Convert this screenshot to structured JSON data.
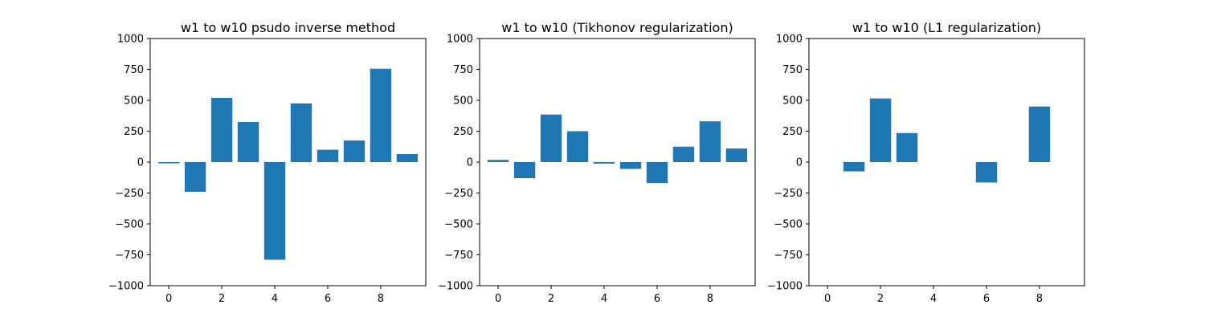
{
  "chart_data": [
    {
      "type": "bar",
      "title": "w1 to w10 psudo inverse method",
      "x": [
        0,
        1,
        2,
        3,
        4,
        5,
        6,
        7,
        8,
        9
      ],
      "values": [
        -10,
        -240,
        520,
        325,
        -790,
        475,
        100,
        175,
        755,
        65
      ],
      "xlim": [
        -0.7,
        9.7
      ],
      "ylim": [
        -1000,
        1000
      ],
      "xticks": [
        0,
        2,
        4,
        6,
        8
      ],
      "yticks": [
        -1000,
        -750,
        -500,
        -250,
        0,
        250,
        500,
        750,
        1000
      ],
      "bar_color": "#1f77b4",
      "grid": false
    },
    {
      "type": "bar",
      "title": "w1 to w10 (Tikhonov regularization)",
      "x": [
        0,
        1,
        2,
        3,
        4,
        5,
        6,
        7,
        8,
        9
      ],
      "values": [
        18,
        -130,
        385,
        250,
        -12,
        -55,
        -170,
        125,
        330,
        110
      ],
      "xlim": [
        -0.7,
        9.7
      ],
      "ylim": [
        -1000,
        1000
      ],
      "xticks": [
        0,
        2,
        4,
        6,
        8
      ],
      "yticks": [
        -1000,
        -750,
        -500,
        -250,
        0,
        250,
        500,
        750,
        1000
      ],
      "bar_color": "#1f77b4",
      "grid": false
    },
    {
      "type": "bar",
      "title": "w1 to w10 (L1 regularization)",
      "x": [
        0,
        1,
        2,
        3,
        4,
        5,
        6,
        7,
        8,
        9
      ],
      "values": [
        0,
        -75,
        515,
        235,
        0,
        0,
        -165,
        0,
        450,
        0
      ],
      "xlim": [
        -0.7,
        9.7
      ],
      "ylim": [
        -1000,
        1000
      ],
      "xticks": [
        0,
        2,
        4,
        6,
        8
      ],
      "yticks": [
        -1000,
        -750,
        -500,
        -250,
        0,
        250,
        500,
        750,
        1000
      ],
      "bar_color": "#1f77b4",
      "grid": false
    }
  ]
}
